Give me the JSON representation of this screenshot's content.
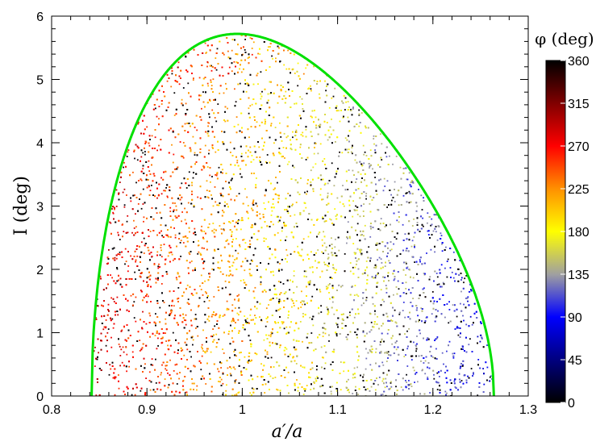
{
  "chart_data": {
    "type": "scatter",
    "title": "",
    "xlabel": "a′/a",
    "ylabel": "I  (deg)",
    "xlim": [
      0.8,
      1.3
    ],
    "ylim": [
      0,
      6
    ],
    "x_ticks": [
      "0.8",
      "0.9",
      "1",
      "1.1",
      "1.2",
      "1.3"
    ],
    "y_ticks": [
      "0",
      "1",
      "2",
      "3",
      "4",
      "5",
      "6"
    ],
    "grid": false,
    "boundary": {
      "color": "#00e000",
      "x_min": 0.842,
      "x_max": 1.264,
      "peak_x": 0.99,
      "peak_y": 5.72
    },
    "colorbar": {
      "title": "φ (deg)",
      "range": [
        0,
        360
      ],
      "ticks": [
        "0",
        "45",
        "90",
        "135",
        "180",
        "225",
        "270",
        "315",
        "360"
      ],
      "colormap": [
        {
          "v": 0,
          "c": "#000000"
        },
        {
          "v": 45,
          "c": "#000080"
        },
        {
          "v": 90,
          "c": "#0000ff"
        },
        {
          "v": 135,
          "c": "#a0a0a0"
        },
        {
          "v": 180,
          "c": "#ffff00"
        },
        {
          "v": 225,
          "c": "#ff9000"
        },
        {
          "v": 270,
          "c": "#ff0000"
        },
        {
          "v": 315,
          "c": "#800000"
        },
        {
          "v": 360,
          "c": "#000000"
        }
      ]
    },
    "points": {
      "count": 9000,
      "description_of_distribution": "phi color varies from red (~270) on the left edge, through yellow (~180) near center, to blue (~90) on right edge; black points (~0/360) scattered throughout; dark points near peak top"
    }
  }
}
